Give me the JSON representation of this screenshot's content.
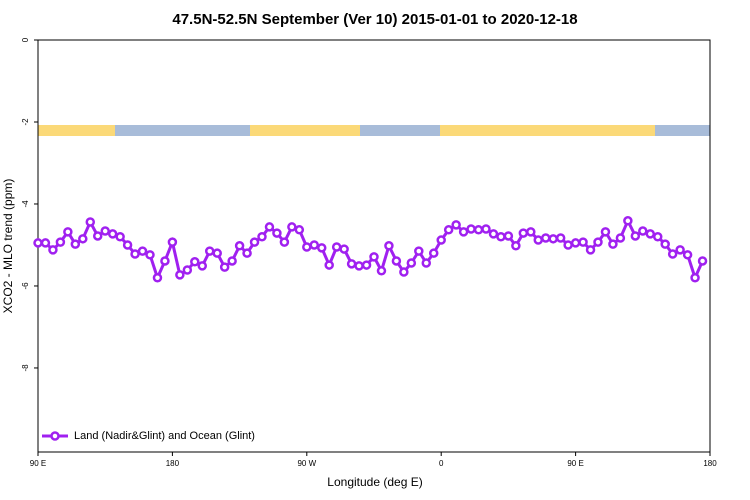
{
  "chart_data": {
    "type": "line",
    "title": "47.5N-52.5N September (Ver 10)   2015-01-01 to 2020-12-18",
    "x_label": "Longitude (deg E)",
    "y_label": "XCO2 - MLO trend (ppm)",
    "x": [
      90,
      95,
      100,
      105,
      110,
      115,
      120,
      125,
      130,
      135,
      140,
      145,
      150,
      155,
      160,
      165,
      170,
      175,
      180,
      185,
      190,
      195,
      200,
      205,
      210,
      215,
      220,
      225,
      230,
      235,
      240,
      245,
      250,
      255,
      260,
      265,
      270,
      275,
      280,
      285,
      290,
      295,
      300,
      305,
      310,
      315,
      320,
      325,
      330,
      335,
      340,
      345,
      350,
      355,
      360,
      365,
      370,
      375,
      380,
      385,
      390,
      395,
      400,
      405,
      410,
      415,
      420,
      425,
      430,
      435,
      440,
      445,
      450,
      455,
      460,
      465,
      470,
      475,
      480,
      485,
      490,
      495,
      500,
      505,
      510,
      515,
      520,
      525,
      530,
      535
    ],
    "series": [
      {
        "name": "Land (Nadir&Glint) and Ocean (Glint)",
        "color": "#a020f0",
        "values": [
          -4.95,
          -4.95,
          -5.12,
          -4.93,
          -4.68,
          -4.98,
          -4.85,
          -4.44,
          -4.78,
          -4.66,
          -4.73,
          -4.8,
          -5.0,
          -5.22,
          -5.15,
          -5.24,
          -5.8,
          -5.39,
          -4.93,
          -5.73,
          -5.61,
          -5.41,
          -5.51,
          -5.15,
          -5.2,
          -5.54,
          -5.39,
          -5.02,
          -5.2,
          -4.93,
          -4.8,
          -4.56,
          -4.71,
          -4.93,
          -4.56,
          -4.63,
          -5.05,
          -5.0,
          -5.07,
          -5.49,
          -5.05,
          -5.1,
          -5.46,
          -5.51,
          -5.49,
          -5.29,
          -5.63,
          -5.02,
          -5.39,
          -5.66,
          -5.44,
          -5.15,
          -5.44,
          -5.2,
          -4.88,
          -4.63,
          -4.51,
          -4.68,
          -4.61,
          -4.63,
          -4.61,
          -4.73,
          -4.8,
          -4.78,
          -5.02,
          -4.71,
          -4.68,
          -4.88,
          -4.83,
          -4.85,
          -4.83,
          -5.0,
          -4.95,
          -4.93,
          -5.12,
          -4.93,
          -4.68,
          -4.98,
          -4.83,
          -4.41,
          -4.78,
          -4.66,
          -4.73,
          -4.8,
          -4.98,
          -5.22,
          -5.12,
          -5.24,
          -5.8,
          -5.39
        ]
      }
    ],
    "xlim": [
      90,
      540
    ],
    "xticks": [
      {
        "value": 90,
        "label": "90 E"
      },
      180,
      {
        "value": 270,
        "label": "90 W"
      },
      {
        "value": 360,
        "label": "0"
      },
      {
        "value": 450,
        "label": "90 E"
      },
      {
        "value": 540,
        "label": "180"
      }
    ],
    "ylim": [
      -10.05,
      0
    ],
    "yticks": [
      0,
      -2,
      -4,
      -6,
      -8
    ],
    "legend": "bottom-left"
  }
}
